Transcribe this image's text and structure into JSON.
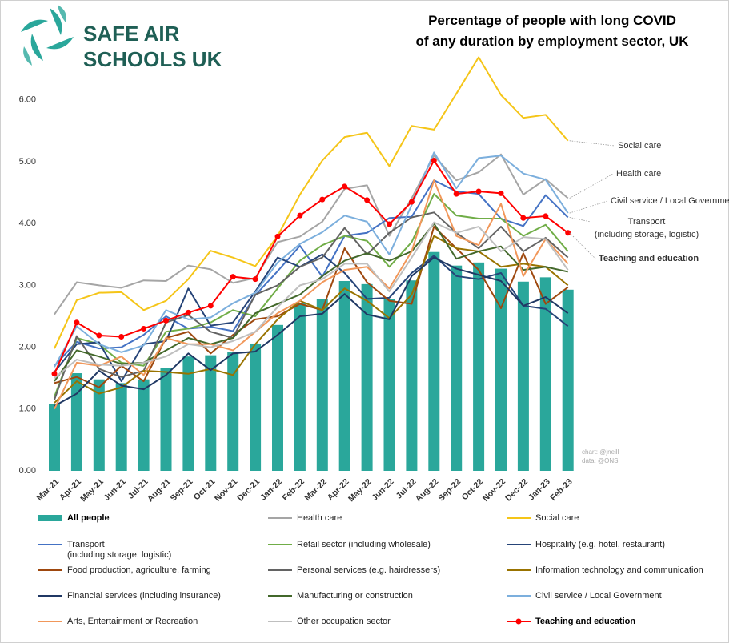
{
  "logo": {
    "line1": "SAFE AIR",
    "line2": "SCHOOLS UK"
  },
  "credit": [
    "chart: @jneill",
    "data: @ONS"
  ],
  "chart_data": {
    "type": "line",
    "title": "Percentage of people with long COVID\nof any duration by employment sector, UK",
    "categories": [
      "Mar-21",
      "Apr-21",
      "May-21",
      "Jun-21",
      "Jul-21",
      "Aug-21",
      "Sep-21",
      "Oct-21",
      "Nov-21",
      "Dec-21",
      "Jan-22",
      "Feb-22",
      "Mar-22",
      "Apr-22",
      "May-22",
      "Jun-22",
      "Jul-22",
      "Aug-22",
      "Sep-22",
      "Oct-22",
      "Nov-22",
      "Dec-22",
      "Jan-23",
      "Feb-23"
    ],
    "ylim": [
      0,
      7
    ],
    "yticks": [
      {
        "value": 0,
        "label": "0.00"
      },
      {
        "value": 1,
        "label": "1.00"
      },
      {
        "value": 2,
        "label": "2.00"
      },
      {
        "value": 3,
        "label": "3.00"
      },
      {
        "value": 4,
        "label": "4.00"
      },
      {
        "value": 5,
        "label": "5.00"
      },
      {
        "value": 6,
        "label": "6.00"
      }
    ],
    "series": [
      {
        "name": "All people",
        "type": "bar",
        "color": "#2aa79b",
        "values": [
          1.08,
          1.58,
          1.48,
          1.42,
          1.48,
          1.67,
          1.85,
          1.87,
          1.93,
          2.06,
          2.36,
          2.71,
          2.78,
          3.07,
          3.02,
          2.78,
          3.08,
          3.54,
          3.32,
          3.37,
          3.27,
          3.06,
          3.13,
          2.93
        ]
      },
      {
        "name": "Health care",
        "color": "#a5a5a5",
        "values": [
          2.53,
          3.05,
          3.0,
          2.96,
          3.08,
          3.07,
          3.32,
          3.26,
          3.04,
          3.12,
          3.7,
          3.79,
          4.03,
          4.56,
          4.62,
          3.8,
          4.41,
          5.1,
          4.7,
          4.83,
          5.12,
          4.47,
          4.72,
          4.41
        ]
      },
      {
        "name": "Social care",
        "color": "#f5c518",
        "values": [
          1.98,
          2.76,
          2.88,
          2.89,
          2.6,
          2.75,
          3.1,
          3.56,
          3.45,
          3.31,
          3.8,
          4.47,
          5.02,
          5.4,
          5.47,
          4.93,
          5.58,
          5.52,
          6.1,
          6.69,
          6.08,
          5.71,
          5.76,
          5.34
        ]
      },
      {
        "name": "Transport\n(including storage, logistic)",
        "color": "#4472c4",
        "values": [
          1.7,
          2.09,
          1.98,
          2.0,
          2.2,
          2.5,
          2.3,
          2.33,
          2.26,
          2.84,
          3.23,
          3.64,
          3.14,
          3.8,
          3.85,
          4.09,
          4.11,
          4.7,
          4.52,
          4.48,
          4.08,
          3.96,
          4.46,
          4.1
        ]
      },
      {
        "name": "Retail sector (including wholesale)",
        "color": "#70ad47",
        "values": [
          1.2,
          2.15,
          2.05,
          1.75,
          1.7,
          2.25,
          2.3,
          2.4,
          2.6,
          2.5,
          2.95,
          3.4,
          3.65,
          3.8,
          3.72,
          3.3,
          3.7,
          4.48,
          4.13,
          4.08,
          4.08,
          3.8,
          3.98,
          3.55
        ]
      },
      {
        "name": "Hospitality (e.g. hotel, restaurant)",
        "color": "#264478",
        "values": [
          1.6,
          2.05,
          2.08,
          1.45,
          2.05,
          2.1,
          2.95,
          2.35,
          2.4,
          2.9,
          3.45,
          3.3,
          3.5,
          3.2,
          2.78,
          2.8,
          3.2,
          3.48,
          3.15,
          3.1,
          3.2,
          2.67,
          2.62,
          2.34
        ]
      },
      {
        "name": "Food production, agriculture, farming",
        "color": "#9e480e",
        "values": [
          1.42,
          1.52,
          1.35,
          1.7,
          1.45,
          2.15,
          2.25,
          1.9,
          2.2,
          2.45,
          2.5,
          2.7,
          2.6,
          3.6,
          3.05,
          2.75,
          2.7,
          3.95,
          3.6,
          3.25,
          2.63,
          3.52,
          2.7,
          2.97
        ]
      },
      {
        "name": "Personal services (e.g. hairdressers)",
        "color": "#636363",
        "values": [
          1.15,
          2.18,
          1.65,
          1.52,
          1.62,
          2.4,
          2.52,
          2.25,
          2.15,
          2.85,
          3.0,
          3.3,
          3.45,
          3.93,
          3.5,
          3.85,
          4.1,
          4.18,
          3.85,
          3.6,
          3.95,
          3.55,
          3.77,
          3.45
        ]
      },
      {
        "name": "Information technology and communication",
        "color": "#997300",
        "values": [
          1.1,
          1.45,
          1.25,
          1.35,
          1.62,
          1.6,
          1.57,
          1.65,
          1.55,
          2.05,
          2.45,
          2.75,
          2.6,
          2.95,
          2.75,
          2.47,
          2.85,
          3.8,
          3.6,
          3.55,
          3.3,
          3.35,
          3.3,
          3.0
        ]
      },
      {
        "name": "Financial services (including insurance)",
        "color": "#203864",
        "values": [
          1.05,
          1.25,
          1.62,
          1.38,
          1.32,
          1.55,
          1.9,
          1.63,
          1.9,
          1.93,
          2.2,
          2.5,
          2.54,
          2.86,
          2.53,
          2.45,
          3.15,
          3.45,
          3.27,
          3.17,
          3.07,
          2.67,
          2.81,
          2.55
        ]
      },
      {
        "name": "Manufacturing or construction",
        "color": "#43682b",
        "values": [
          1.45,
          1.95,
          1.85,
          1.73,
          1.75,
          1.95,
          2.15,
          2.05,
          2.15,
          2.55,
          2.7,
          2.85,
          3.15,
          3.4,
          3.52,
          3.4,
          3.55,
          4.0,
          3.43,
          3.55,
          3.63,
          3.25,
          3.3,
          3.22
        ]
      },
      {
        "name": "Civil service / Local Government",
        "color": "#7cafdd",
        "values": [
          1.68,
          2.34,
          2.05,
          1.92,
          2.03,
          2.6,
          2.45,
          2.48,
          2.71,
          2.88,
          3.37,
          3.67,
          3.86,
          4.13,
          4.03,
          3.5,
          4.3,
          5.15,
          4.57,
          5.06,
          5.1,
          4.81,
          4.71,
          4.17
        ]
      },
      {
        "name": "Arts, Entertainment or Recreation",
        "color": "#f1975a",
        "values": [
          1.0,
          1.75,
          1.7,
          1.85,
          1.55,
          2.15,
          2.05,
          2.05,
          1.95,
          2.25,
          2.55,
          2.75,
          3.05,
          3.25,
          3.3,
          2.95,
          3.55,
          4.7,
          3.8,
          3.65,
          4.32,
          3.15,
          3.75,
          3.35
        ]
      },
      {
        "name": "Other occupation sector",
        "color": "#bfbfbf",
        "values": [
          1.5,
          1.8,
          1.72,
          1.7,
          1.75,
          1.85,
          2.05,
          2.0,
          2.1,
          2.25,
          2.65,
          3.0,
          3.1,
          3.35,
          3.35,
          2.9,
          3.45,
          4.02,
          3.85,
          3.95,
          3.55,
          3.78,
          3.75,
          3.25
        ]
      },
      {
        "name": "Teaching and education",
        "color": "#ff0000",
        "marker": true,
        "values": [
          1.57,
          2.4,
          2.19,
          2.17,
          2.3,
          2.43,
          2.56,
          2.67,
          3.14,
          3.1,
          3.79,
          4.13,
          4.39,
          4.6,
          4.38,
          3.99,
          4.35,
          5.02,
          4.48,
          4.52,
          4.49,
          4.09,
          4.12,
          3.85
        ]
      }
    ],
    "annotations": [
      "Social care",
      "Health care",
      "Civil service / Local Government",
      "Transport\n(including storage, logistic)",
      "Teaching and education"
    ]
  }
}
